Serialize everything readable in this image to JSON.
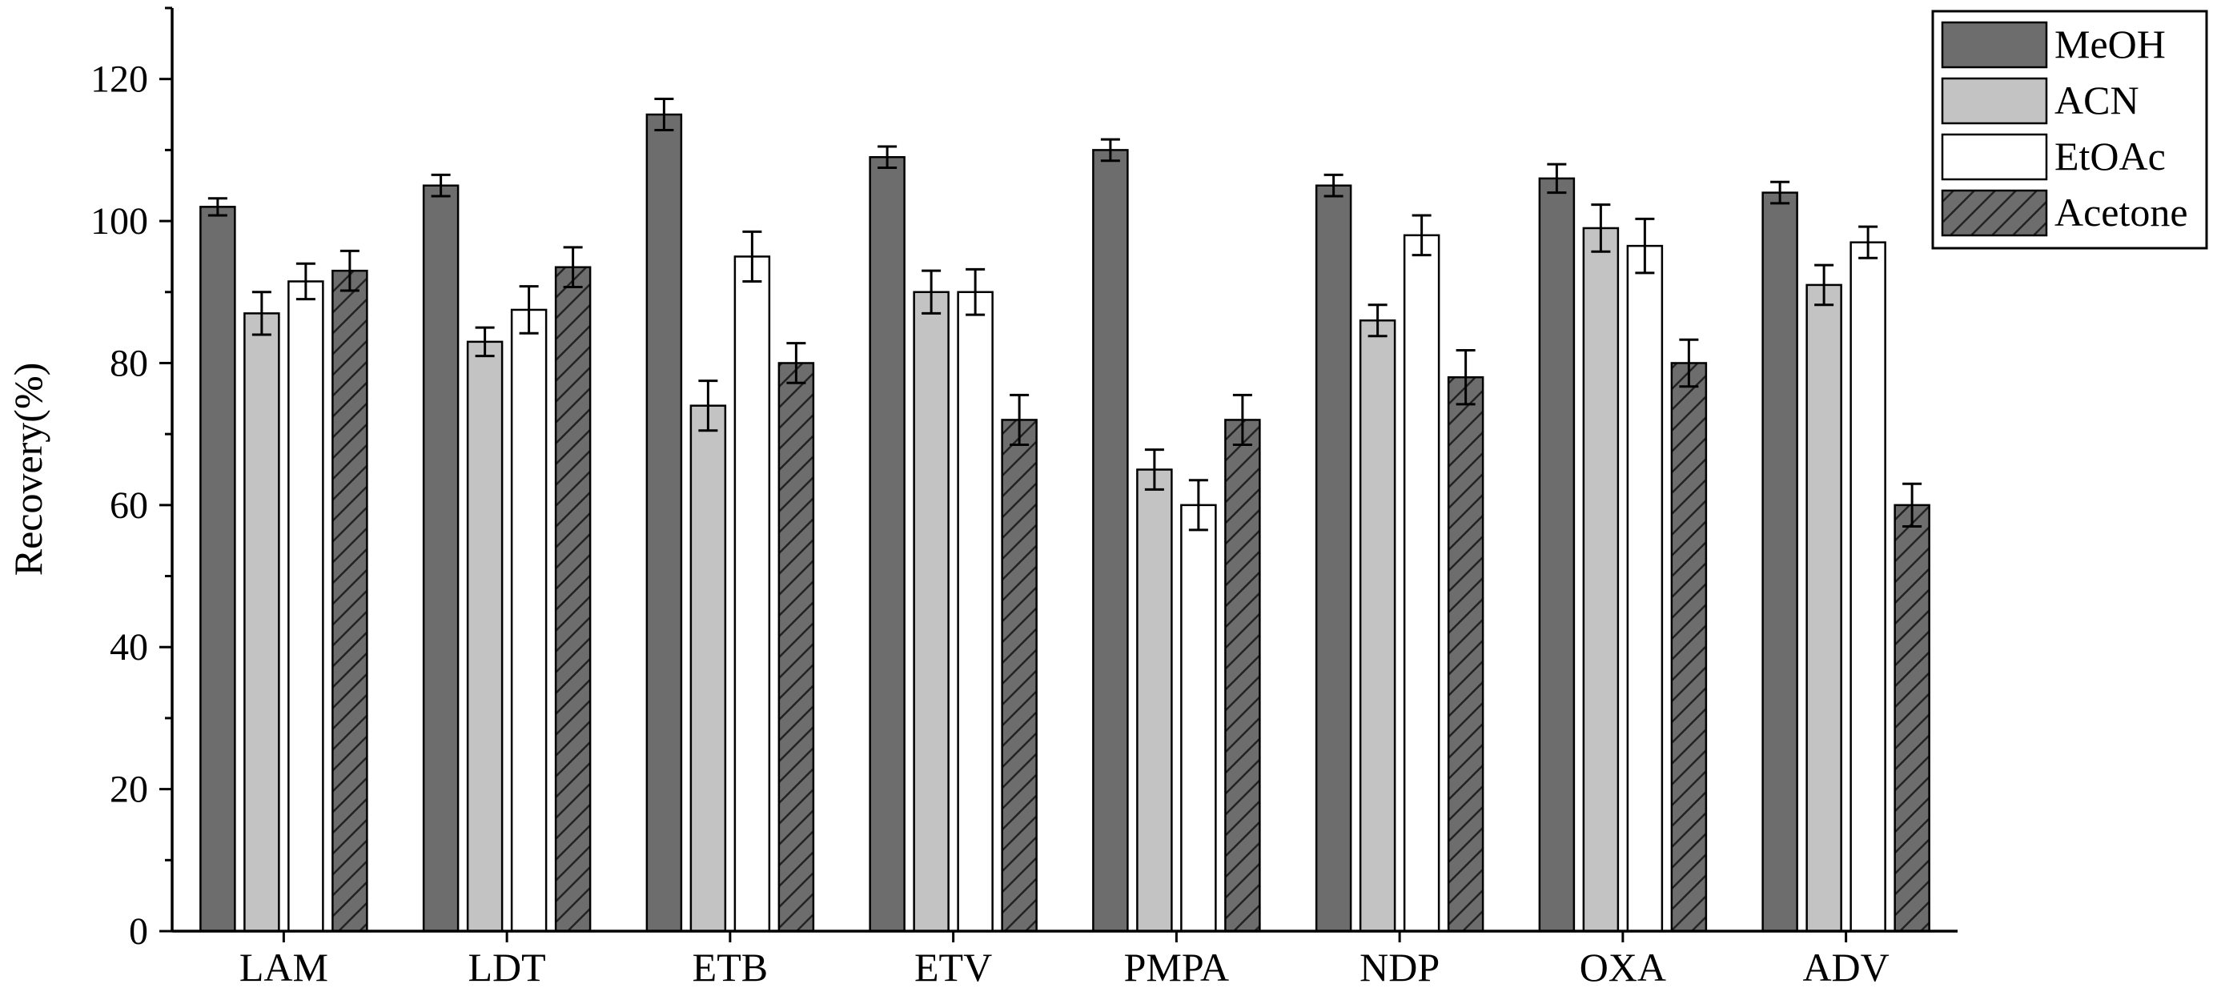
{
  "chart_data": {
    "type": "bar",
    "title": "",
    "xlabel": "",
    "ylabel": "Recovery(%)",
    "ylim": [
      0,
      130
    ],
    "yticks": [
      0,
      20,
      40,
      60,
      80,
      100,
      120
    ],
    "grid": false,
    "legend_position": "top-right",
    "categories": [
      "LAM",
      "LDT",
      "ETB",
      "ETV",
      "PMPA",
      "NDP",
      "OXA",
      "ADV"
    ],
    "series": [
      {
        "name": "MeOH",
        "color": "#6d6d6d",
        "pattern": "solid",
        "values": [
          102,
          105,
          115,
          109,
          110,
          105,
          106,
          104
        ],
        "errors": [
          1.2,
          1.5,
          2.2,
          1.5,
          1.5,
          1.5,
          2.0,
          1.5
        ]
      },
      {
        "name": "ACN",
        "color": "#c3c3c3",
        "pattern": "solid",
        "values": [
          87,
          83,
          74,
          90,
          65,
          86,
          99,
          91
        ],
        "errors": [
          3.0,
          2.0,
          3.5,
          3.0,
          2.8,
          2.2,
          3.3,
          2.8
        ]
      },
      {
        "name": "EtOAc",
        "color": "#ffffff",
        "pattern": "solid",
        "values": [
          91.5,
          87.5,
          95,
          90,
          60,
          98,
          96.5,
          97
        ],
        "errors": [
          2.5,
          3.3,
          3.5,
          3.2,
          3.5,
          2.8,
          3.8,
          2.2
        ]
      },
      {
        "name": "Acetone",
        "color": "#6d6d6d",
        "pattern": "hatched",
        "values": [
          93,
          93.5,
          80,
          72,
          72,
          78,
          80,
          60
        ],
        "errors": [
          2.8,
          2.8,
          2.8,
          3.5,
          3.5,
          3.8,
          3.3,
          3.0
        ]
      }
    ]
  }
}
